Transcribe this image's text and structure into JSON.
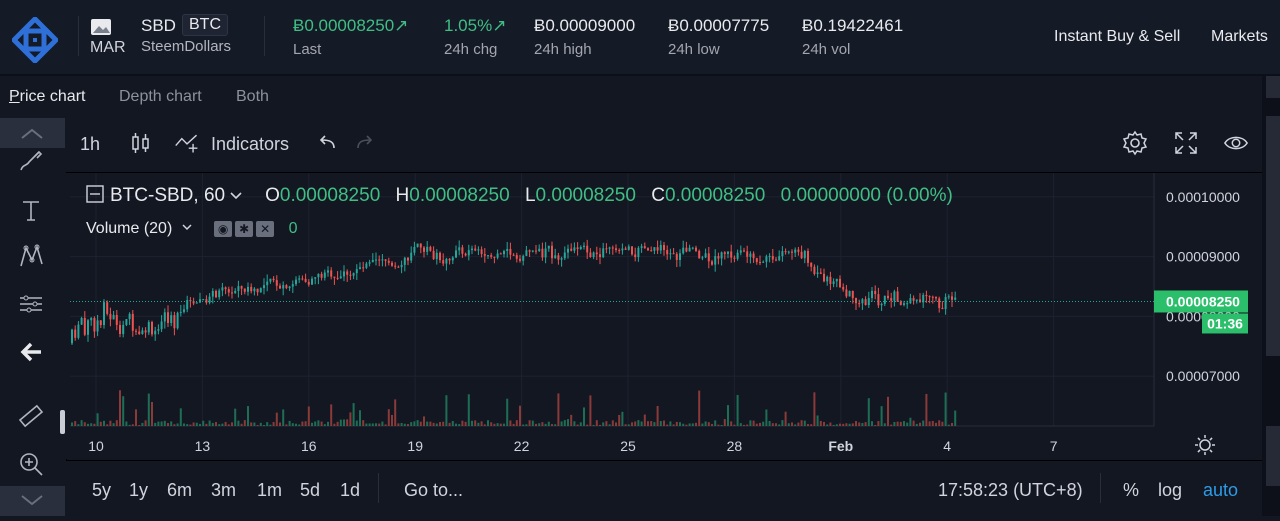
{
  "header": {
    "coin_image_alt": "MAR",
    "base": "SBD",
    "quote": "BTC",
    "pair_name": "SteemDollars",
    "stats": [
      {
        "value": "Ƀ0.00008250↗",
        "label": "Last",
        "up": true
      },
      {
        "value": "1.05%↗",
        "label": "24h chg",
        "up": true
      },
      {
        "value": "Ƀ0.00009000",
        "label": "24h high",
        "up": false
      },
      {
        "value": "Ƀ0.00007775",
        "label": "24h low",
        "up": false
      },
      {
        "value": "Ƀ0.19422461",
        "label": "24h vol",
        "up": false
      }
    ],
    "nav": [
      "Instant Buy & Sell",
      "Markets"
    ]
  },
  "tabs": {
    "price_prefix": "P",
    "price_rest": "rice chart",
    "depth": "Depth chart",
    "both": "Both"
  },
  "toolbar": {
    "interval": "1h",
    "indicators": "Indicators"
  },
  "legend": {
    "symbol": "BTC-SBD, 60",
    "o_label": "O",
    "o": "0.00008250",
    "h_label": "H",
    "h": "0.00008250",
    "l_label": "L",
    "l": "0.00008250",
    "c_label": "C",
    "c": "0.00008250",
    "change": "0.00000000 (0.00%)",
    "volume_label": "Volume (20)",
    "volume_value": "0"
  },
  "chart_data": {
    "type": "candlestick",
    "price_axis_ticks": [
      "0.00010000",
      "0.00009000",
      "0.00008000",
      "0.00007000"
    ],
    "current_price": "0.00008250",
    "countdown": "01:36",
    "x_ticks": [
      "10",
      "13",
      "16",
      "19",
      "22",
      "25",
      "28",
      "Feb",
      "4",
      "7"
    ],
    "y_range": [
      6.3e-05,
      0.000104
    ],
    "colors": {
      "up": "#26a69a",
      "down": "#ef5350",
      "price_line": "#26a69a"
    }
  },
  "bottom": {
    "ranges": [
      "5y",
      "1y",
      "6m",
      "3m",
      "1m",
      "5d",
      "1d"
    ],
    "goto": "Go to...",
    "clock": "17:58:23 (UTC+8)",
    "percent": "%",
    "log": "log",
    "auto": "auto"
  },
  "colors": {
    "accent_blue": "#2e9be8",
    "up_green": "#3fbf84",
    "bg": "#131722"
  }
}
